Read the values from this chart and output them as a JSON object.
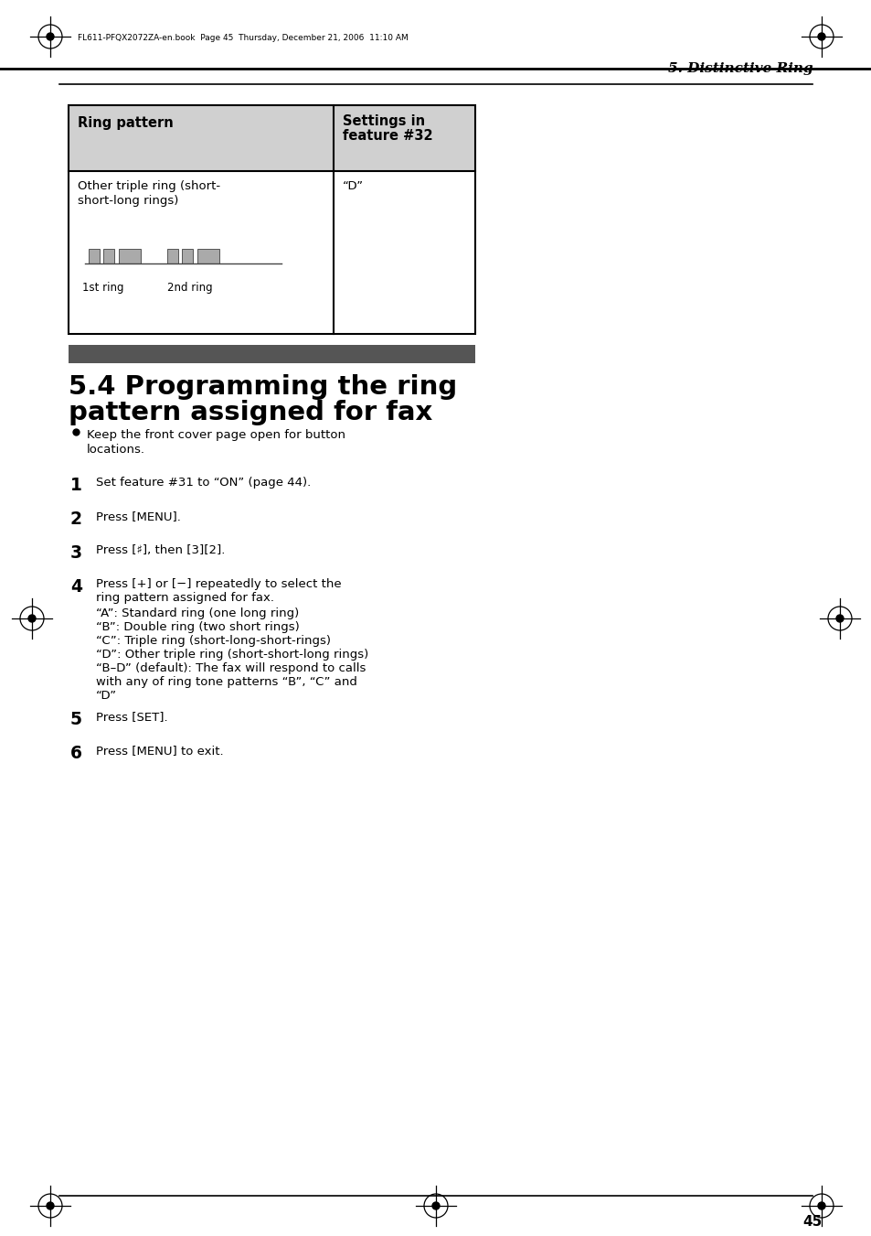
{
  "page_number": "45",
  "header_text": "5. Distinctive Ring",
  "book_info": "FL611-PFQX2072ZA-en.book  Page 45  Thursday, December 21, 2006  11:10 AM",
  "table_col1_header": "Ring pattern",
  "table_col2_header": "Settings in\nfeature #32",
  "table_row1_col1_line1": "Other triple ring (short-",
  "table_row1_col1_line2": "short-long rings)",
  "table_row1_col2": "“D”",
  "ring_label1": "1st ring",
  "ring_label2": "2nd ring",
  "bullet_text1": "Keep the front cover page open for button",
  "bullet_text2": "locations.",
  "step1_num": "1",
  "step1_text": "Set feature #31 to “ON” (page 44).",
  "step2_num": "2",
  "step2_text": "Press [MENU].",
  "step3_num": "3",
  "step3_text": "Press [♯], then [3][2].",
  "step4_num": "4",
  "step4_line1": "Press [+] or [−] repeatedly to select the",
  "step4_line2": "ring pattern assigned for fax.",
  "step4_a": "“A”: Standard ring (one long ring)",
  "step4_b": "“B”: Double ring (two short rings)",
  "step4_c": "“C”: Triple ring (short-long-short-rings)",
  "step4_d": "“D”: Other triple ring (short-short-long rings)",
  "step4_bd1": "“B–D” (default): The fax will respond to calls",
  "step4_bd2": "with any of ring tone patterns “B”, “C” and",
  "step4_bd3": "“D”",
  "step5_num": "5",
  "step5_text": "Press [SET].",
  "step6_num": "6",
  "step6_text": "Press [MENU] to exit.",
  "bg_color": "#ffffff",
  "table_header_bg": "#d0d0d0",
  "table_border_color": "#000000",
  "section_bar_color": "#555555",
  "ring_pattern_color": "#aaaaaa",
  "text_color": "#000000"
}
